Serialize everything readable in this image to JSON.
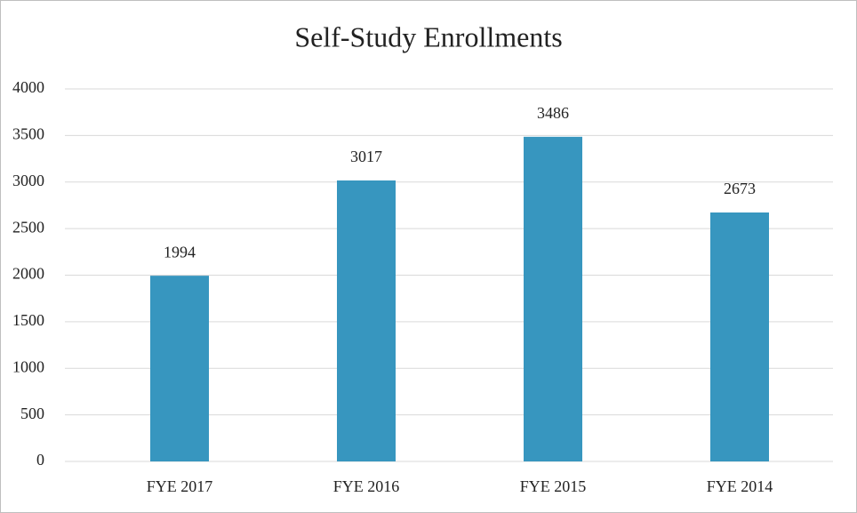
{
  "chart_data": {
    "type": "bar",
    "title": "Self-Study Enrollments",
    "categories": [
      "FYE 2017",
      "FYE 2016",
      "FYE 2015",
      "FYE 2014"
    ],
    "values": [
      1994,
      3017,
      3486,
      2673
    ],
    "color": "#3796bf",
    "ylim": [
      0,
      4000
    ],
    "yticks": [
      0,
      500,
      1000,
      1500,
      2000,
      2500,
      3000,
      3500,
      4000
    ],
    "grid": true
  }
}
